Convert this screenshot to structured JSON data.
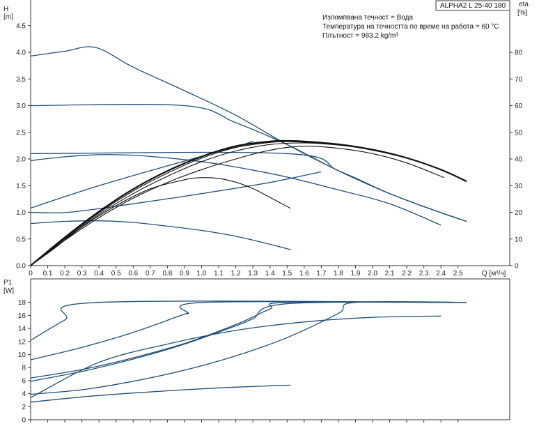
{
  "model_label": "ALPHA2 L 25-40 180",
  "info_lines": [
    "Изпомпвана течност = Вода",
    "Температура на течността по време на работа = 60 °C",
    "Плътност = 983.2 kg/m³"
  ],
  "colors": {
    "curve": "#1f4e79",
    "eta": "#111111",
    "frame": "#333333"
  },
  "chart_data": [
    {
      "type": "line",
      "x_axis": {
        "label": "Q [м³/ч]",
        "min": 0,
        "max": 2.7,
        "ticks": [
          "0",
          "0.1",
          "0.2",
          "0.3",
          "0.4",
          "0.5",
          "0.6",
          "0.7",
          "0.8",
          "0.9",
          "1.0",
          "1.1",
          "1.2",
          "1.3",
          "1.4",
          "1.5",
          "1.6",
          "1.7",
          "1.8",
          "1.9",
          "2.0",
          "2.1",
          "2.2",
          "2.3",
          "2.4",
          "2.5"
        ]
      },
      "y_axis": {
        "label_top": "H",
        "label_unit": "[m]",
        "min": 0,
        "max": 4.75,
        "ticks": [
          "0.0",
          "0.5",
          "1.0",
          "1.5",
          "2.0",
          "2.5",
          "3.0",
          "3.5",
          "4.0",
          "4.5"
        ]
      },
      "y2_axis": {
        "label_top": "eta",
        "label_unit": "[%]",
        "min": 0,
        "max": 95,
        "ticks": [
          "0",
          "10",
          "20",
          "30",
          "40",
          "50",
          "60",
          "70",
          "80"
        ]
      },
      "series": [
        {
          "values": [
            [
              0,
              3.93
            ],
            [
              0.2,
              4.02
            ],
            [
              0.38,
              4.09
            ],
            [
              0.6,
              3.72
            ],
            [
              0.9,
              3.28
            ],
            [
              1.2,
              2.82
            ],
            [
              1.5,
              2.27
            ],
            [
              1.8,
              1.78
            ],
            [
              2.1,
              1.35
            ],
            [
              2.35,
              1.05
            ],
            [
              2.55,
              0.83
            ]
          ]
        },
        {
          "values": [
            [
              0,
              3.0
            ],
            [
              0.9,
              3.0
            ],
            [
              1.2,
              2.68
            ],
            [
              1.5,
              2.27
            ],
            [
              1.8,
              1.78
            ],
            [
              2.1,
              1.35
            ],
            [
              2.35,
              1.05
            ],
            [
              2.55,
              0.83
            ]
          ]
        },
        {
          "values": [
            [
              0,
              2.1
            ],
            [
              1.5,
              2.1
            ],
            [
              1.8,
              1.78
            ],
            [
              2.1,
              1.35
            ],
            [
              2.35,
              1.05
            ],
            [
              2.55,
              0.83
            ]
          ]
        },
        {
          "values": [
            [
              0,
              1.97
            ],
            [
              0.2,
              2.04
            ],
            [
              0.4,
              2.08
            ],
            [
              0.6,
              2.07
            ],
            [
              0.8,
              2.02
            ],
            [
              1.0,
              1.95
            ],
            [
              1.2,
              1.85
            ],
            [
              1.5,
              1.66
            ],
            [
              1.8,
              1.42
            ],
            [
              2.1,
              1.16
            ],
            [
              2.4,
              0.76
            ]
          ]
        },
        {
          "values": [
            [
              0,
              1.08
            ],
            [
              0.4,
              1.5
            ],
            [
              0.8,
              1.87
            ],
            [
              1.2,
              2.23
            ],
            [
              1.3,
              2.33
            ]
          ]
        },
        {
          "values": [
            [
              0,
              1.0
            ],
            [
              0.22,
              1.0
            ],
            [
              0.6,
              1.16
            ],
            [
              1.0,
              1.35
            ],
            [
              1.4,
              1.56
            ],
            [
              1.7,
              1.76
            ]
          ]
        },
        {
          "values": [
            [
              0,
              0.79
            ],
            [
              0.2,
              0.83
            ],
            [
              0.4,
              0.84
            ],
            [
              0.6,
              0.81
            ],
            [
              0.8,
              0.74
            ],
            [
              1.0,
              0.66
            ],
            [
              1.2,
              0.55
            ],
            [
              1.4,
              0.4
            ],
            [
              1.52,
              0.3
            ]
          ]
        }
      ],
      "eta_series": [
        {
          "values": [
            [
              0,
              0
            ],
            [
              0.15,
              7
            ],
            [
              0.3,
              14.5
            ],
            [
              0.5,
              22.5
            ],
            [
              0.7,
              28.8
            ],
            [
              0.9,
              32.2
            ],
            [
              1.0,
              33
            ],
            [
              1.1,
              32.7
            ],
            [
              1.2,
              31.3
            ],
            [
              1.3,
              28.9
            ],
            [
              1.4,
              25.6
            ],
            [
              1.52,
              21.5
            ]
          ]
        },
        {
          "values": [
            [
              0,
              0
            ],
            [
              0.2,
              9.5
            ],
            [
              0.4,
              18
            ],
            [
              0.6,
              25.3
            ],
            [
              0.8,
              31.2
            ],
            [
              1.0,
              36
            ],
            [
              1.2,
              40
            ],
            [
              1.4,
              43.3
            ],
            [
              1.6,
              44.8
            ],
            [
              1.8,
              44
            ],
            [
              2.0,
              42
            ],
            [
              2.2,
              38.5
            ],
            [
              2.42,
              33
            ]
          ]
        },
        {
          "values": [
            [
              0,
              0
            ],
            [
              0.2,
              10
            ],
            [
              0.4,
              19.2
            ],
            [
              0.6,
              27
            ],
            [
              0.8,
              33.5
            ],
            [
              1.0,
              39
            ],
            [
              1.2,
              43
            ],
            [
              1.4,
              45.4
            ],
            [
              1.6,
              46
            ],
            [
              1.8,
              45.2
            ],
            [
              2.0,
              43.5
            ],
            [
              2.2,
              40.5
            ],
            [
              2.4,
              36
            ],
            [
              2.55,
              31.6
            ]
          ]
        },
        {
          "values": [
            [
              0,
              0
            ],
            [
              0.2,
              10.3
            ],
            [
              0.4,
              19.8
            ],
            [
              0.6,
              28
            ],
            [
              0.8,
              34.7
            ],
            [
              1.0,
              40.3
            ],
            [
              1.2,
              44.3
            ],
            [
              1.4,
              46.2
            ],
            [
              1.5,
              46.5
            ],
            [
              1.6,
              46.3
            ],
            [
              1.8,
              45.3
            ],
            [
              2.0,
              43.3
            ],
            [
              2.2,
              40.3
            ],
            [
              2.4,
              36
            ],
            [
              2.55,
              31.6
            ]
          ]
        },
        {
          "values": [
            [
              0,
              0
            ],
            [
              0.2,
              10.6
            ],
            [
              0.4,
              20.3
            ],
            [
              0.6,
              28.7
            ],
            [
              0.8,
              35.5
            ],
            [
              1.0,
              40.9
            ],
            [
              1.2,
              44.8
            ],
            [
              1.4,
              46.6
            ],
            [
              1.5,
              46.8
            ],
            [
              1.6,
              46.6
            ],
            [
              1.8,
              45.5
            ],
            [
              2.0,
              43.5
            ],
            [
              2.2,
              40.4
            ],
            [
              2.4,
              36
            ],
            [
              2.55,
              31.6
            ]
          ]
        }
      ]
    },
    {
      "type": "line",
      "x_axis": {
        "min": 0,
        "max": 2.7
      },
      "y_axis": {
        "label_top": "P1",
        "label_unit": "[W]",
        "min": 0,
        "max": 19.5,
        "ticks": [
          "0",
          "2",
          "4",
          "6",
          "8",
          "10",
          "12",
          "14",
          "16",
          "18"
        ]
      },
      "series": [
        {
          "values": [
            [
              0,
              12.2
            ],
            [
              0.2,
              15.3
            ],
            [
              0.4,
              18
            ],
            [
              2.55,
              18
            ]
          ]
        },
        {
          "values": [
            [
              0,
              9.2
            ],
            [
              0.3,
              11.1
            ],
            [
              0.6,
              13.4
            ],
            [
              0.9,
              16.2
            ],
            [
              0.92,
              16.3
            ],
            [
              1.02,
              18
            ],
            [
              2.55,
              18
            ]
          ]
        },
        {
          "values": [
            [
              0,
              6.4
            ],
            [
              0.3,
              7.7
            ],
            [
              0.6,
              9.5
            ],
            [
              0.9,
              11.7
            ],
            [
              1.2,
              14.6
            ],
            [
              1.4,
              17
            ],
            [
              1.5,
              18
            ],
            [
              2.55,
              18
            ]
          ]
        },
        {
          "values": [
            [
              0,
              5.9
            ],
            [
              0.3,
              7.4
            ],
            [
              0.6,
              9.3
            ],
            [
              0.9,
              11.6
            ],
            [
              1.2,
              14.4
            ],
            [
              1.3,
              15.5
            ],
            [
              1.5,
              17.8
            ],
            [
              2.55,
              18
            ]
          ]
        },
        {
          "values": [
            [
              0,
              3.9
            ],
            [
              0.3,
              4.6
            ],
            [
              0.6,
              5.9
            ],
            [
              0.9,
              7.6
            ],
            [
              1.2,
              9.8
            ],
            [
              1.5,
              12.6
            ],
            [
              1.8,
              16.3
            ],
            [
              1.9,
              18
            ],
            [
              2.55,
              18
            ]
          ]
        },
        {
          "values": [
            [
              0,
              3.4
            ],
            [
              0.4,
              8.8
            ],
            [
              0.8,
              11.6
            ],
            [
              1.2,
              13.7
            ],
            [
              1.6,
              15
            ],
            [
              2.0,
              15.7
            ],
            [
              2.4,
              15.9
            ]
          ]
        },
        {
          "values": [
            [
              0,
              2.7
            ],
            [
              0.3,
              3.5
            ],
            [
              0.6,
              4.1
            ],
            [
              0.9,
              4.6
            ],
            [
              1.2,
              5.0
            ],
            [
              1.52,
              5.3
            ]
          ]
        }
      ]
    }
  ]
}
